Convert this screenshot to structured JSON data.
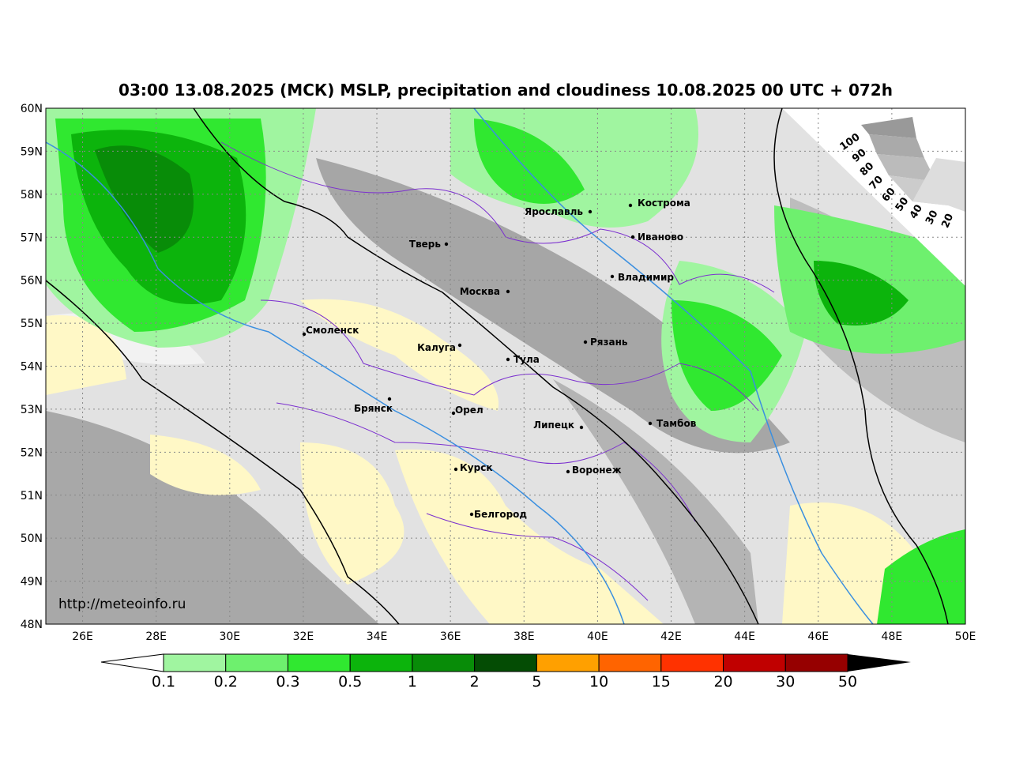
{
  "header": {
    "title": "03:00 13.08.2025 (МСК) MSLP, precipitation and cloudiness 10.08.2025 00 UTC + 072h"
  },
  "map": {
    "lat_labels": [
      "48N",
      "49N",
      "50N",
      "51N",
      "52N",
      "53N",
      "54N",
      "55N",
      "56N",
      "57N",
      "58N",
      "59N",
      "60N"
    ],
    "lon_labels": [
      "26E",
      "28E",
      "30E",
      "32E",
      "34E",
      "36E",
      "38E",
      "40E",
      "42E",
      "44E",
      "46E",
      "48E",
      "50E"
    ],
    "cities": [
      "Кострома",
      "Ярославль",
      "Иваново",
      "Тверь",
      "Владимир",
      "Москва",
      "Смоленск",
      "Рязань",
      "Калуга",
      "Тула",
      "Брянск",
      "Орел",
      "Липецк",
      "Тамбов",
      "Курск",
      "Воронеж",
      "Белгород"
    ],
    "url": "http://meteoinfo.ru",
    "cloud_scale": [
      "100",
      "90",
      "80",
      "70",
      "60",
      "50",
      "40",
      "30",
      "20"
    ]
  },
  "colorbar": {
    "labels": [
      "0.1",
      "0.2",
      "0.3",
      "0.5",
      "1",
      "2",
      "5",
      "10",
      "15",
      "20",
      "30",
      "50"
    ]
  }
}
